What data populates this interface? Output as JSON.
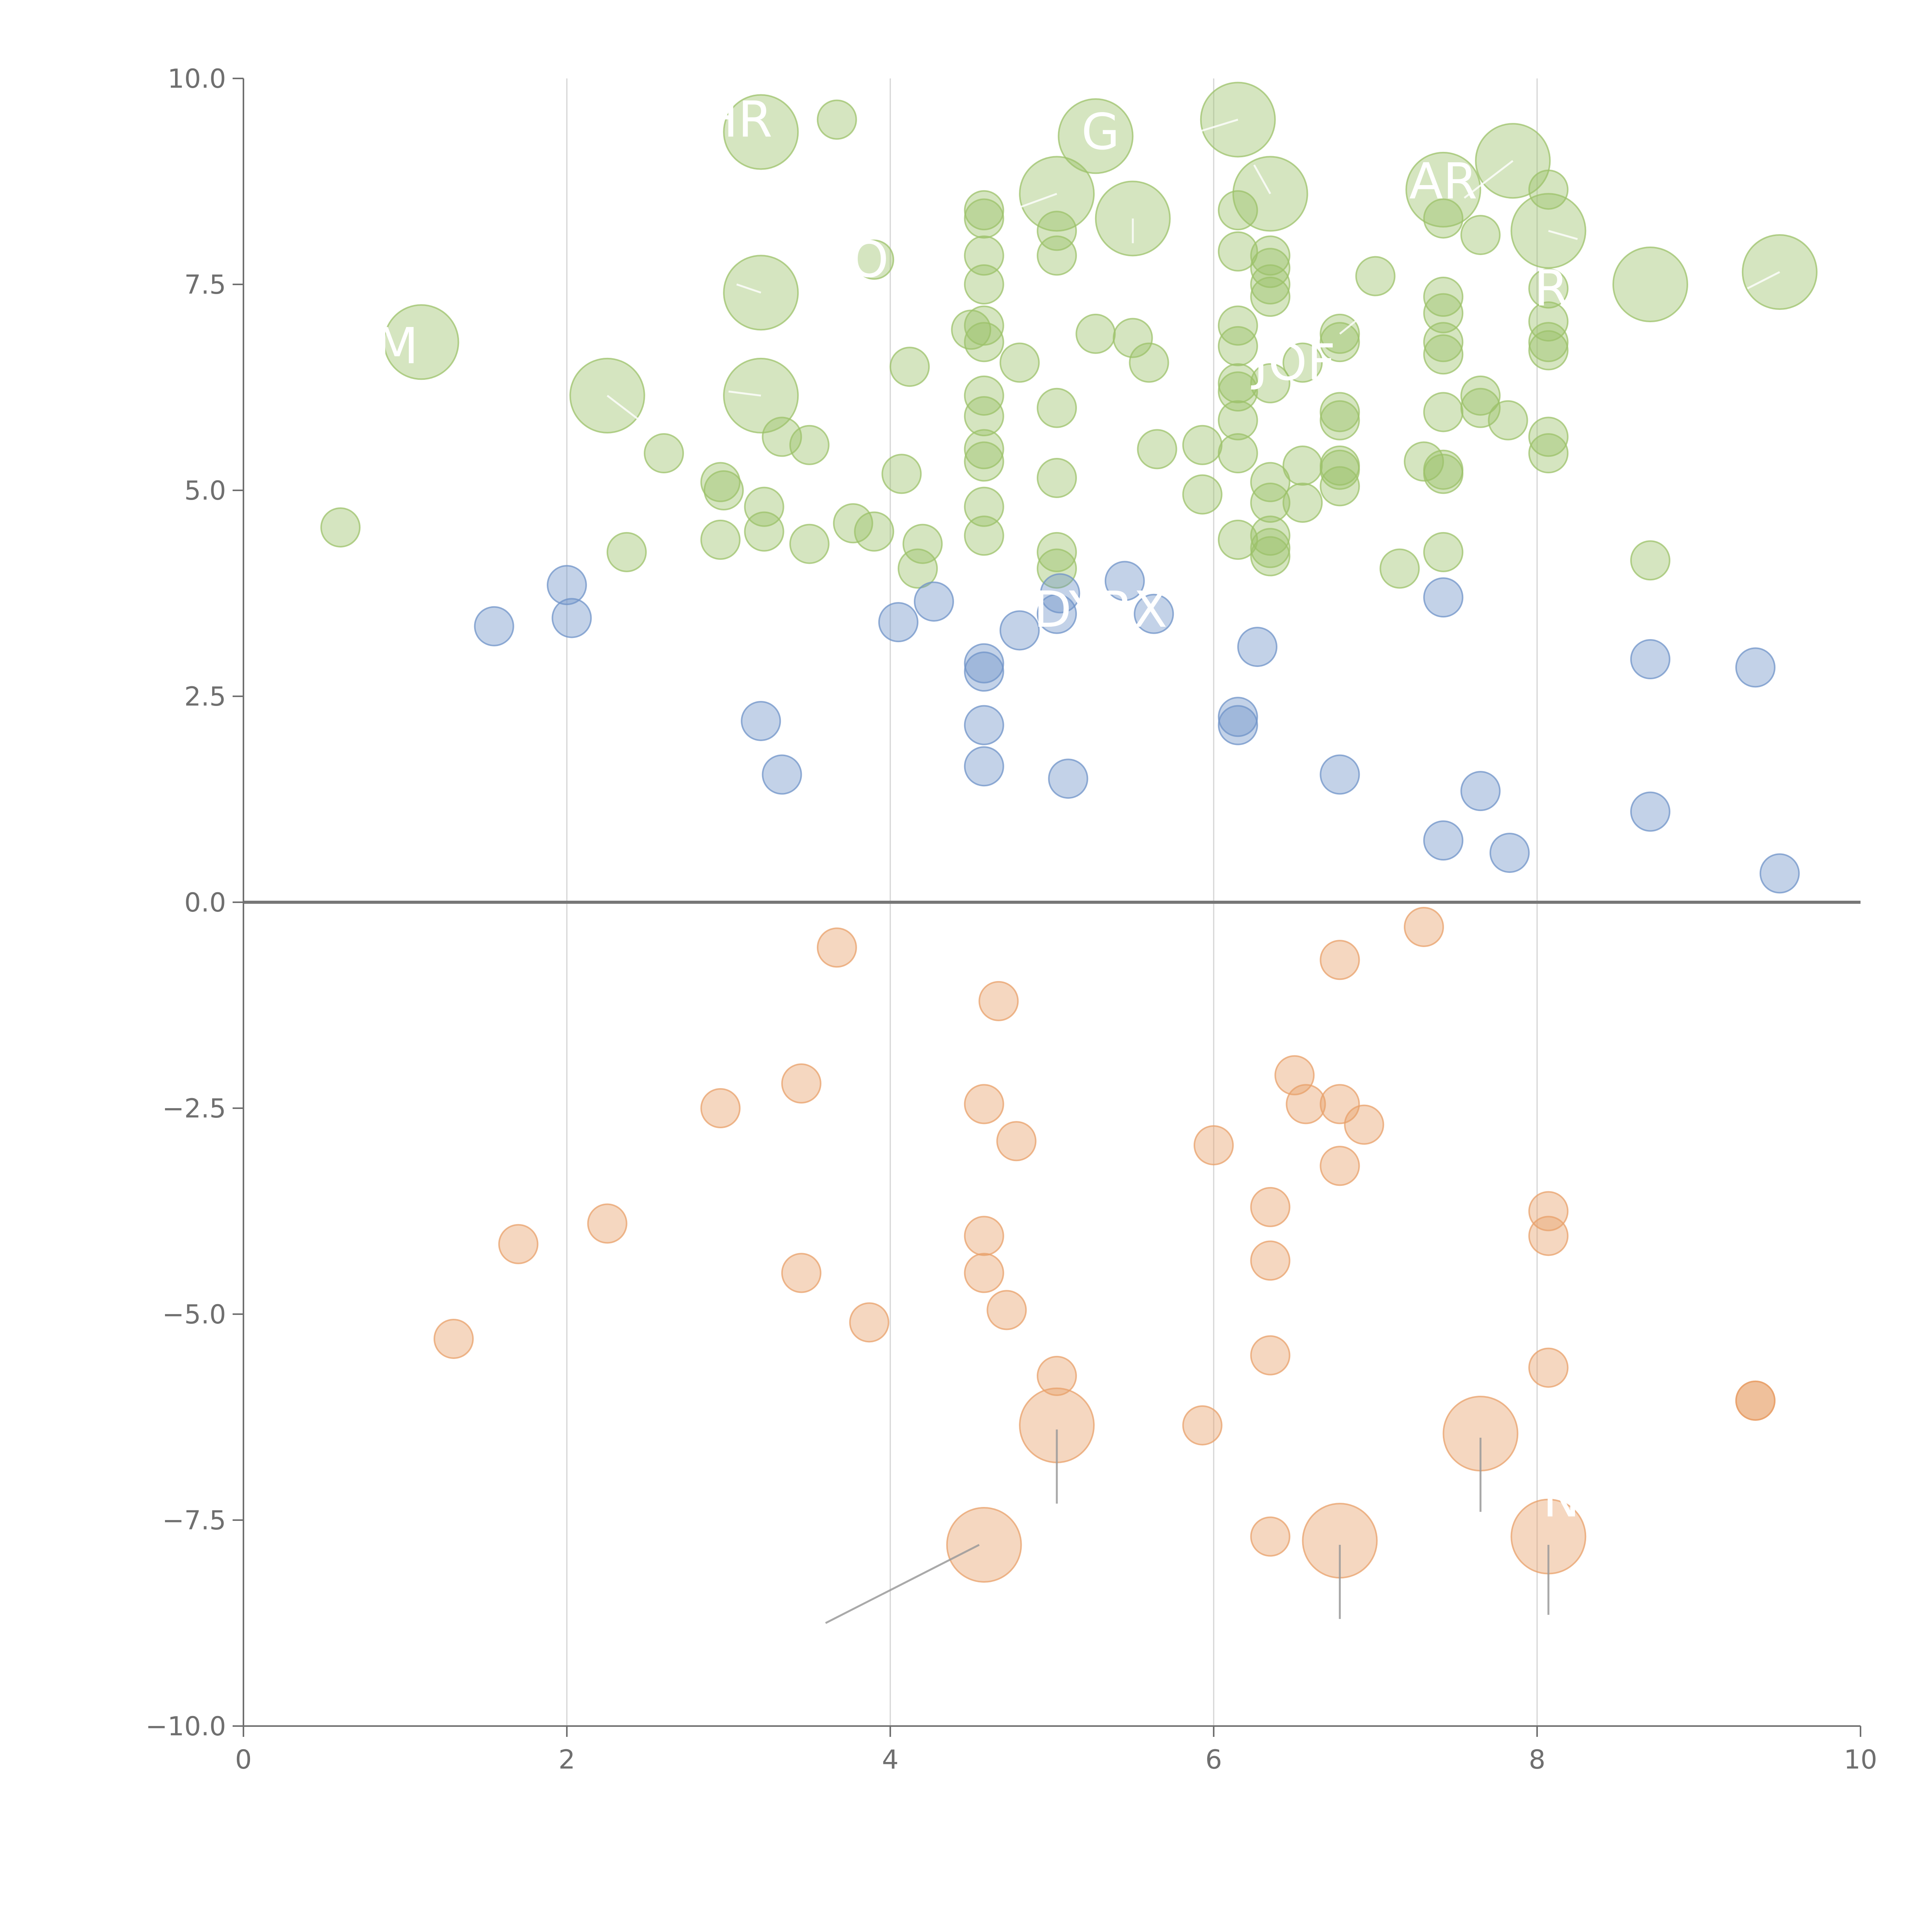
{
  "chart_data": {
    "type": "scatter",
    "subtype": "bubble",
    "title": "",
    "xlabel": "",
    "ylabel": "",
    "xlim": [
      0,
      10
    ],
    "ylim": [
      -10,
      10
    ],
    "x_ticks": [
      0,
      2,
      4,
      6,
      8,
      10
    ],
    "y_ticks": [
      -10.0,
      -7.5,
      -5.0,
      -2.5,
      0.0,
      2.5,
      5.0,
      7.5,
      10.0
    ],
    "x_tick_labels": [
      "0",
      "2",
      "4",
      "6",
      "8",
      "10"
    ],
    "y_tick_labels": [
      "−10.0",
      "−7.5",
      "−5.0",
      "−2.5",
      "0.0",
      "2.5",
      "5.0",
      "7.5",
      "10.0"
    ],
    "vertical_gridlines_at": [
      2,
      4,
      6,
      8
    ],
    "zero_line": true,
    "legend": "none",
    "colors": {
      "green": "#9cc16a",
      "blue": "#6f93c8",
      "orange": "#e8a06a",
      "axis": "#6f6f6f",
      "grid": "#d4d4d4",
      "zero": "#777777",
      "label": "#ffffff",
      "leader": "#9a9a9a"
    },
    "series": [
      {
        "name": "green",
        "color": "#9cc16a",
        "points": [
          [
            0.6,
            4.55,
            1
          ],
          [
            1.1,
            6.8,
            3
          ],
          [
            2.25,
            6.15,
            3
          ],
          [
            2.37,
            4.25,
            1
          ],
          [
            2.6,
            5.45,
            1
          ],
          [
            2.95,
            5.1,
            1
          ],
          [
            2.97,
            5.0,
            1
          ],
          [
            2.95,
            4.4,
            1
          ],
          [
            3.2,
            9.35,
            3
          ],
          [
            3.2,
            7.4,
            3
          ],
          [
            3.2,
            6.15,
            3
          ],
          [
            3.22,
            4.8,
            1
          ],
          [
            3.22,
            4.5,
            1
          ],
          [
            3.33,
            5.65,
            1
          ],
          [
            3.5,
            5.55,
            1
          ],
          [
            3.5,
            4.35,
            1
          ],
          [
            3.67,
            9.5,
            1
          ],
          [
            3.77,
            4.6,
            1
          ],
          [
            3.9,
            7.8,
            1
          ],
          [
            3.9,
            4.5,
            1
          ],
          [
            4.07,
            5.2,
            1
          ],
          [
            4.12,
            6.5,
            1
          ],
          [
            4.17,
            4.05,
            1
          ],
          [
            4.2,
            4.35,
            1
          ],
          [
            4.5,
            6.95,
            1
          ],
          [
            4.58,
            8.4,
            1
          ],
          [
            4.58,
            8.3,
            1
          ],
          [
            4.58,
            7.85,
            1
          ],
          [
            4.58,
            7.5,
            1
          ],
          [
            4.58,
            7.0,
            1
          ],
          [
            4.58,
            6.8,
            1
          ],
          [
            4.58,
            6.15,
            1
          ],
          [
            4.58,
            5.9,
            1
          ],
          [
            4.58,
            5.5,
            1
          ],
          [
            4.58,
            5.35,
            1
          ],
          [
            4.58,
            4.8,
            1
          ],
          [
            4.58,
            4.45,
            1
          ],
          [
            4.8,
            6.55,
            1
          ],
          [
            5.03,
            8.6,
            3
          ],
          [
            5.03,
            8.15,
            1
          ],
          [
            5.03,
            7.85,
            1
          ],
          [
            5.03,
            6.0,
            1
          ],
          [
            5.03,
            5.15,
            1
          ],
          [
            5.03,
            4.25,
            1
          ],
          [
            5.03,
            4.05,
            1
          ],
          [
            5.27,
            9.3,
            3
          ],
          [
            5.27,
            6.9,
            1
          ],
          [
            5.5,
            8.3,
            3
          ],
          [
            5.5,
            6.85,
            1
          ],
          [
            5.6,
            6.55,
            1
          ],
          [
            5.65,
            5.5,
            1
          ],
          [
            5.93,
            5.55,
            1
          ],
          [
            5.93,
            4.95,
            1
          ],
          [
            6.15,
            9.5,
            3
          ],
          [
            6.15,
            8.4,
            1
          ],
          [
            6.15,
            7.9,
            1
          ],
          [
            6.15,
            7.0,
            1
          ],
          [
            6.15,
            6.75,
            1
          ],
          [
            6.15,
            6.3,
            1
          ],
          [
            6.15,
            6.2,
            1
          ],
          [
            6.15,
            5.85,
            1
          ],
          [
            6.15,
            5.45,
            1
          ],
          [
            6.15,
            4.4,
            1
          ],
          [
            6.35,
            8.6,
            3
          ],
          [
            6.35,
            7.85,
            1
          ],
          [
            6.35,
            7.7,
            1
          ],
          [
            6.35,
            7.5,
            1
          ],
          [
            6.35,
            7.35,
            1
          ],
          [
            6.35,
            6.3,
            1
          ],
          [
            6.35,
            5.1,
            1
          ],
          [
            6.35,
            4.85,
            1
          ],
          [
            6.35,
            4.45,
            1
          ],
          [
            6.35,
            4.3,
            1
          ],
          [
            6.35,
            4.2,
            1
          ],
          [
            6.55,
            6.55,
            1
          ],
          [
            6.55,
            5.3,
            1
          ],
          [
            6.55,
            4.85,
            1
          ],
          [
            6.78,
            6.9,
            1
          ],
          [
            6.78,
            6.8,
            1
          ],
          [
            6.78,
            5.95,
            1
          ],
          [
            6.78,
            5.85,
            1
          ],
          [
            6.78,
            5.3,
            1
          ],
          [
            6.78,
            5.25,
            1
          ],
          [
            6.78,
            5.05,
            1
          ],
          [
            7.0,
            7.6,
            1
          ],
          [
            7.15,
            4.05,
            1
          ],
          [
            7.3,
            5.35,
            1
          ],
          [
            7.42,
            8.65,
            3
          ],
          [
            7.42,
            8.3,
            1
          ],
          [
            7.42,
            7.35,
            1
          ],
          [
            7.42,
            7.15,
            1
          ],
          [
            7.42,
            6.8,
            1
          ],
          [
            7.42,
            6.65,
            1
          ],
          [
            7.42,
            5.95,
            1
          ],
          [
            7.42,
            5.25,
            1
          ],
          [
            7.42,
            5.2,
            1
          ],
          [
            7.42,
            4.25,
            1
          ],
          [
            7.65,
            8.1,
            1
          ],
          [
            7.65,
            6.15,
            1
          ],
          [
            7.65,
            6.0,
            1
          ],
          [
            7.82,
            5.85,
            1
          ],
          [
            7.85,
            9.0,
            3
          ],
          [
            8.07,
            8.65,
            1
          ],
          [
            8.07,
            8.15,
            3
          ],
          [
            8.07,
            7.45,
            1
          ],
          [
            8.07,
            7.05,
            1
          ],
          [
            8.07,
            6.8,
            1
          ],
          [
            8.07,
            6.7,
            1
          ],
          [
            8.07,
            5.65,
            1
          ],
          [
            8.07,
            5.45,
            1
          ],
          [
            8.7,
            7.5,
            3
          ],
          [
            8.7,
            4.15,
            1
          ],
          [
            9.5,
            7.65,
            3
          ]
        ]
      },
      {
        "name": "blue",
        "color": "#6f93c8",
        "points": [
          [
            1.55,
            3.35,
            1
          ],
          [
            2.0,
            3.85,
            1
          ],
          [
            2.03,
            3.45,
            1
          ],
          [
            3.2,
            2.2,
            1
          ],
          [
            3.33,
            1.55,
            1
          ],
          [
            4.05,
            3.4,
            1
          ],
          [
            4.27,
            3.65,
            1
          ],
          [
            4.58,
            2.9,
            1
          ],
          [
            4.58,
            2.8,
            1
          ],
          [
            4.58,
            2.15,
            1
          ],
          [
            4.58,
            1.65,
            1
          ],
          [
            4.8,
            3.3,
            1
          ],
          [
            5.03,
            3.5,
            1
          ],
          [
            5.05,
            3.75,
            1
          ],
          [
            5.1,
            1.5,
            1
          ],
          [
            5.45,
            3.9,
            1
          ],
          [
            5.63,
            3.5,
            1
          ],
          [
            6.15,
            2.25,
            1
          ],
          [
            6.15,
            2.15,
            1
          ],
          [
            6.27,
            3.1,
            1
          ],
          [
            6.78,
            1.55,
            1
          ],
          [
            7.42,
            3.7,
            1
          ],
          [
            7.42,
            0.75,
            1
          ],
          [
            7.65,
            1.35,
            1
          ],
          [
            7.83,
            0.6,
            1
          ],
          [
            8.7,
            2.95,
            1
          ],
          [
            8.7,
            1.1,
            1
          ],
          [
            9.35,
            2.85,
            1
          ],
          [
            9.5,
            0.35,
            1
          ]
        ]
      },
      {
        "name": "orange",
        "color": "#e8a06a",
        "points": [
          [
            1.3,
            -5.3,
            1
          ],
          [
            1.7,
            -4.15,
            1
          ],
          [
            2.25,
            -3.9,
            1
          ],
          [
            2.95,
            -2.5,
            1
          ],
          [
            3.45,
            -2.2,
            1
          ],
          [
            3.45,
            -4.5,
            1
          ],
          [
            3.67,
            -0.55,
            1
          ],
          [
            3.87,
            -5.1,
            1
          ],
          [
            4.58,
            -2.45,
            1
          ],
          [
            4.58,
            -4.05,
            1
          ],
          [
            4.58,
            -4.5,
            1
          ],
          [
            4.58,
            -7.8,
            3
          ],
          [
            4.67,
            -1.2,
            1
          ],
          [
            4.72,
            -4.95,
            1
          ],
          [
            4.78,
            -2.9,
            1
          ],
          [
            5.03,
            -5.75,
            1
          ],
          [
            5.03,
            -6.35,
            3
          ],
          [
            5.93,
            -6.35,
            1
          ],
          [
            6.0,
            -2.95,
            1
          ],
          [
            6.35,
            -3.7,
            1
          ],
          [
            6.35,
            -4.35,
            1
          ],
          [
            6.35,
            -5.5,
            1
          ],
          [
            6.35,
            -7.7,
            1
          ],
          [
            6.5,
            -2.1,
            1
          ],
          [
            6.57,
            -2.45,
            1
          ],
          [
            6.78,
            -0.7,
            1
          ],
          [
            6.78,
            -2.45,
            1
          ],
          [
            6.78,
            -3.2,
            1
          ],
          [
            6.78,
            -7.75,
            3
          ],
          [
            6.93,
            -2.7,
            1
          ],
          [
            7.3,
            -0.3,
            1
          ],
          [
            7.65,
            -6.45,
            3
          ],
          [
            8.07,
            -3.75,
            1
          ],
          [
            8.07,
            -4.05,
            1
          ],
          [
            8.07,
            -5.65,
            1
          ],
          [
            8.07,
            -7.7,
            3
          ],
          [
            9.35,
            -6.05,
            1
          ],
          [
            9.35,
            -6.05,
            1
          ]
        ]
      }
    ],
    "point_format": "[x, y, size_class] where size_class 1 = small bubble, 3 = large bubble",
    "annotations": [
      {
        "text": "HR",
        "x": 3.05,
        "y": 9.5
      },
      {
        "text": "G",
        "x": 5.3,
        "y": 9.35
      },
      {
        "text": "AR",
        "x": 7.42,
        "y": 8.75
      },
      {
        "text": "M",
        "x": 0.95,
        "y": 6.75
      },
      {
        "text": "RU",
        "x": 8.2,
        "y": 7.45
      },
      {
        "text": "JOF",
        "x": 6.5,
        "y": 6.55
      },
      {
        "text": "DYRX",
        "x": 5.3,
        "y": 3.55
      },
      {
        "text": "O",
        "x": 3.87,
        "y": 7.8
      },
      {
        "text": "N",
        "x": 8.15,
        "y": -7.25
      }
    ],
    "leader_lines": [
      {
        "x1": 4.55,
        "y1": -7.8,
        "x2": 3.6,
        "y2": -8.75
      },
      {
        "x1": 5.03,
        "y1": -6.4,
        "x2": 5.03,
        "y2": -7.3
      },
      {
        "x1": 6.78,
        "y1": -7.8,
        "x2": 6.78,
        "y2": -8.7
      },
      {
        "x1": 7.65,
        "y1": -6.5,
        "x2": 7.65,
        "y2": -7.4
      },
      {
        "x1": 8.07,
        "y1": -7.8,
        "x2": 8.07,
        "y2": -8.65
      },
      {
        "x1": 6.15,
        "y1": 9.5,
        "x2": 5.9,
        "y2": 9.35
      },
      {
        "x1": 6.35,
        "y1": 8.6,
        "x2": 6.25,
        "y2": 8.95
      },
      {
        "x1": 7.85,
        "y1": 9.0,
        "x2": 7.55,
        "y2": 8.55
      },
      {
        "x1": 8.07,
        "y1": 8.15,
        "x2": 8.25,
        "y2": 8.05
      },
      {
        "x1": 9.5,
        "y1": 7.65,
        "x2": 9.3,
        "y2": 7.45
      },
      {
        "x1": 5.03,
        "y1": 8.6,
        "x2": 4.75,
        "y2": 8.4
      },
      {
        "x1": 3.2,
        "y1": 7.4,
        "x2": 3.05,
        "y2": 7.5
      },
      {
        "x1": 3.2,
        "y1": 6.15,
        "x2": 3.0,
        "y2": 6.2
      },
      {
        "x1": 2.25,
        "y1": 6.15,
        "x2": 2.45,
        "y2": 5.85
      },
      {
        "x1": 5.5,
        "y1": 8.3,
        "x2": 5.5,
        "y2": 8.0
      },
      {
        "x1": 6.78,
        "y1": 6.9,
        "x2": 7.0,
        "y2": 7.25
      }
    ]
  }
}
